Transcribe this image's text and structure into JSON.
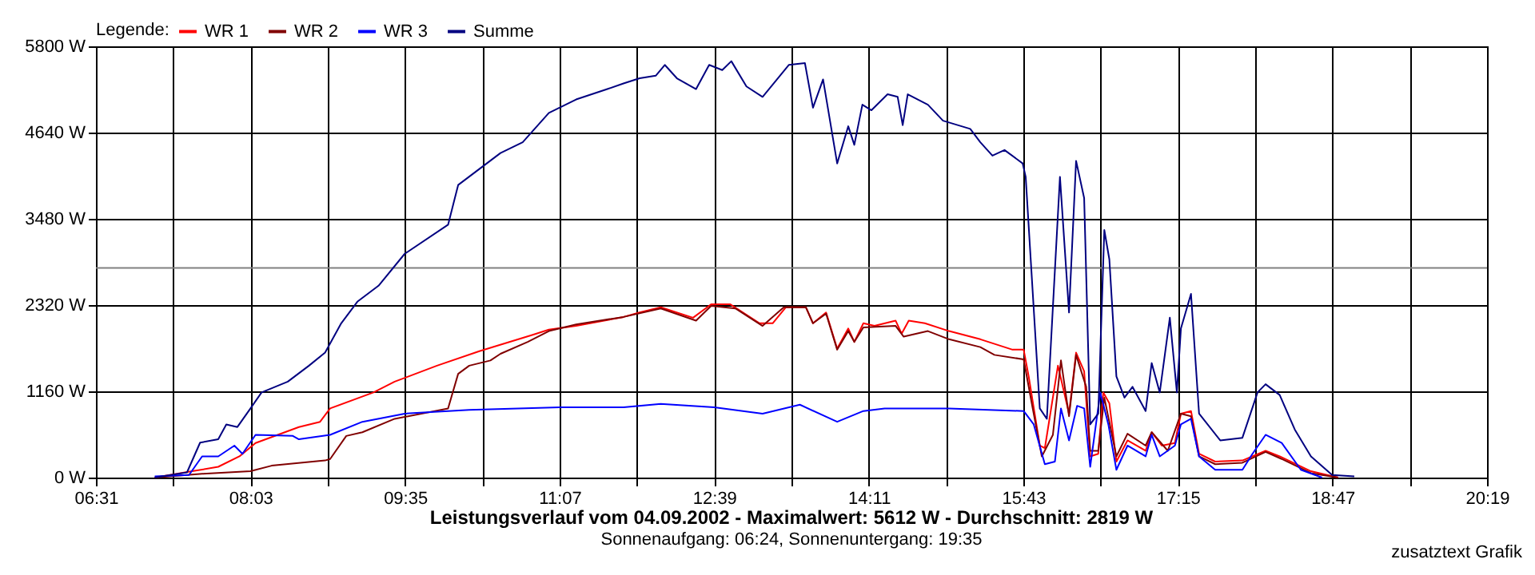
{
  "chart_data": {
    "type": "line",
    "title": "Leistungsverlauf vom 04.09.2002 - Maximalwert: 5612 W - Durchschnitt: 2819 W",
    "subtitle": "Sonnenaufgang: 06:24, Sonnenuntergang: 19:35",
    "legend_title": "Legende:",
    "annotations": [
      "zusatztext Grafik"
    ],
    "xlim": [
      6.5167,
      20.3167
    ],
    "xticks": [
      {
        "value": 6.5167,
        "label": "06:31"
      },
      {
        "value": 7.2833,
        "label": null
      },
      {
        "value": 8.05,
        "label": "08:03"
      },
      {
        "value": 8.8167,
        "label": null
      },
      {
        "value": 9.5833,
        "label": "09:35"
      },
      {
        "value": 10.35,
        "label": null
      },
      {
        "value": 11.1167,
        "label": "11:07"
      },
      {
        "value": 11.8833,
        "label": null
      },
      {
        "value": 12.65,
        "label": "12:39"
      },
      {
        "value": 13.4167,
        "label": null
      },
      {
        "value": 14.1833,
        "label": "14:11"
      },
      {
        "value": 14.95,
        "label": null
      },
      {
        "value": 15.7167,
        "label": "15:43"
      },
      {
        "value": 16.4833,
        "label": null
      },
      {
        "value": 17.25,
        "label": "17:15"
      },
      {
        "value": 18.0167,
        "label": null
      },
      {
        "value": 18.7833,
        "label": "18:47"
      },
      {
        "value": 19.55,
        "label": null
      },
      {
        "value": 20.3167,
        "label": "20:19"
      }
    ],
    "ylim": [
      0,
      5800
    ],
    "yticks": [
      {
        "value": 0,
        "label": "0 W"
      },
      {
        "value": 1160,
        "label": "1160 W"
      },
      {
        "value": 2320,
        "label": "2320 W"
      },
      {
        "value": 3480,
        "label": "3480 W"
      },
      {
        "value": 4640,
        "label": "4640 W"
      },
      {
        "value": 5800,
        "label": "5800 W"
      }
    ],
    "grid": true,
    "legend": "top left",
    "marker": "none",
    "line_style": "solid",
    "ref_lines": [
      {
        "axis": "y",
        "value": 2819,
        "color": "#808080"
      }
    ],
    "series": [
      {
        "name": "WR 1",
        "color": "#ff0000",
        "x": [
          7.1,
          7.47,
          7.73,
          7.94,
          8.1,
          8.53,
          8.74,
          8.84,
          9.27,
          9.48,
          9.9,
          10.32,
          10.85,
          11.01,
          11.28,
          11.75,
          11.91,
          12.12,
          12.44,
          12.62,
          12.81,
          13.1,
          13.23,
          13.36,
          13.56,
          13.63,
          13.76,
          13.87,
          13.98,
          14.04,
          14.13,
          14.24,
          14.45,
          14.51,
          14.58,
          14.74,
          14.98,
          15.29,
          15.61,
          15.72,
          15.77,
          15.88,
          15.93,
          16.06,
          16.17,
          16.24,
          16.32,
          16.38,
          16.46,
          16.51,
          16.57,
          16.64,
          16.75,
          16.93,
          16.99,
          17.09,
          17.22,
          17.28,
          17.38,
          17.46,
          17.62,
          17.89,
          18.12,
          18.26,
          18.57,
          18.84
        ],
        "values": [
          0,
          85,
          145,
          285,
          465,
          680,
          750,
          930,
          1145,
          1290,
          1505,
          1700,
          1920,
          1990,
          2040,
          2160,
          2220,
          2290,
          2150,
          2330,
          2330,
          2075,
          2075,
          2290,
          2290,
          2075,
          2220,
          1735,
          2005,
          1825,
          2075,
          2040,
          2110,
          1935,
          2110,
          2075,
          1970,
          1860,
          1720,
          1720,
          1360,
          430,
          395,
          1505,
          860,
          1680,
          1430,
          285,
          320,
          1145,
          1000,
          215,
          500,
          360,
          610,
          430,
          465,
          860,
          895,
          320,
          215,
          230,
          360,
          285,
          85,
          0
        ]
      },
      {
        "name": "WR 2",
        "color": "#800000",
        "x": [
          7.1,
          7.57,
          8.05,
          8.26,
          8.79,
          8.84,
          9.0,
          9.16,
          9.48,
          10.01,
          10.11,
          10.22,
          10.43,
          10.53,
          10.8,
          11.01,
          11.28,
          11.75,
          12.12,
          12.47,
          12.62,
          12.86,
          13.13,
          13.34,
          13.56,
          13.63,
          13.76,
          13.87,
          13.98,
          14.04,
          14.13,
          14.45,
          14.53,
          14.77,
          14.98,
          15.29,
          15.43,
          15.72,
          15.8,
          15.9,
          16.01,
          16.09,
          16.17,
          16.24,
          16.34,
          16.38,
          16.46,
          16.52,
          16.64,
          16.75,
          16.93,
          16.99,
          17.15,
          17.28,
          17.38,
          17.46,
          17.62,
          17.89,
          18.12,
          18.28,
          18.57,
          18.84
        ],
        "values": [
          0,
          50,
          85,
          160,
          230,
          250,
          560,
          610,
          790,
          930,
          1395,
          1505,
          1575,
          1665,
          1825,
          1970,
          2060,
          2160,
          2275,
          2110,
          2310,
          2275,
          2040,
          2290,
          2290,
          2075,
          2205,
          1720,
          1970,
          1825,
          2020,
          2040,
          1895,
          1970,
          1860,
          1755,
          1650,
          1590,
          1000,
          285,
          575,
          1575,
          825,
          1650,
          1220,
          360,
          360,
          1075,
          285,
          590,
          430,
          610,
          360,
          860,
          825,
          285,
          180,
          200,
          345,
          250,
          60,
          0
        ]
      },
      {
        "name": "WR 3",
        "color": "#0000ff",
        "x": [
          7.1,
          7.44,
          7.57,
          7.73,
          7.89,
          7.97,
          8.1,
          8.47,
          8.53,
          8.84,
          9.16,
          9.58,
          10.22,
          11.12,
          11.75,
          12.12,
          12.65,
          13.13,
          13.5,
          13.87,
          14.13,
          14.34,
          14.98,
          15.72,
          15.82,
          15.93,
          16.03,
          16.09,
          16.17,
          16.25,
          16.32,
          16.38,
          16.48,
          16.56,
          16.64,
          16.75,
          16.93,
          16.99,
          17.07,
          17.22,
          17.28,
          17.38,
          17.46,
          17.62,
          17.89,
          17.99,
          18.12,
          18.28,
          18.47,
          18.68
        ],
        "values": [
          15,
          35,
          285,
          285,
          430,
          320,
          575,
          560,
          515,
          575,
          750,
          860,
          910,
          945,
          945,
          990,
          945,
          860,
          980,
          750,
          895,
          930,
          930,
          895,
          715,
          180,
          215,
          930,
          500,
          965,
          930,
          145,
          1145,
          715,
          105,
          430,
          285,
          575,
          285,
          430,
          715,
          790,
          285,
          105,
          105,
          320,
          575,
          465,
          105,
          0
        ]
      },
      {
        "name": "Summe",
        "color": "#000080",
        "x": [
          7.1,
          7.42,
          7.55,
          7.73,
          7.81,
          7.92,
          8.05,
          8.16,
          8.42,
          8.63,
          8.79,
          8.95,
          9.11,
          9.32,
          9.58,
          10.01,
          10.11,
          10.32,
          10.53,
          10.75,
          11.01,
          11.28,
          11.59,
          11.75,
          11.91,
          12.07,
          12.16,
          12.28,
          12.47,
          12.6,
          12.73,
          12.82,
          12.97,
          13.13,
          13.39,
          13.55,
          13.63,
          13.73,
          13.87,
          13.98,
          14.04,
          14.12,
          14.21,
          14.37,
          14.47,
          14.52,
          14.57,
          14.77,
          14.92,
          15.19,
          15.29,
          15.41,
          15.53,
          15.71,
          15.74,
          15.88,
          15.95,
          16.08,
          16.17,
          16.24,
          16.32,
          16.38,
          16.46,
          16.52,
          16.57,
          16.64,
          16.72,
          16.8,
          16.93,
          16.99,
          17.07,
          17.17,
          17.24,
          17.28,
          17.38,
          17.46,
          17.67,
          17.89,
          18.04,
          18.12,
          18.26,
          18.41,
          18.57,
          18.78,
          19.0
        ],
        "values": [
          0,
          70,
          470,
          515,
          715,
          680,
          930,
          1145,
          1290,
          1505,
          1680,
          2075,
          2365,
          2580,
          3010,
          3400,
          3935,
          4150,
          4365,
          4510,
          4905,
          5085,
          5225,
          5300,
          5370,
          5405,
          5550,
          5370,
          5225,
          5550,
          5480,
          5600,
          5260,
          5120,
          5550,
          5575,
          4975,
          5355,
          4225,
          4725,
          4475,
          5015,
          4940,
          5155,
          5120,
          4740,
          5155,
          5015,
          4800,
          4690,
          4510,
          4330,
          4405,
          4225,
          4045,
          930,
          790,
          4045,
          2220,
          4260,
          3760,
          715,
          860,
          3330,
          2935,
          1360,
          1075,
          1220,
          895,
          1540,
          1145,
          2150,
          1145,
          2005,
          2470,
          860,
          500,
          535,
          1145,
          1255,
          1110,
          645,
          285,
          35,
          15
        ]
      }
    ]
  }
}
